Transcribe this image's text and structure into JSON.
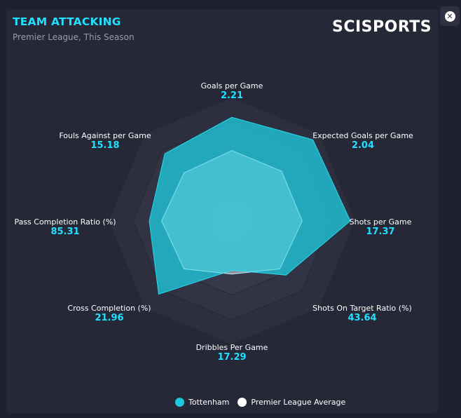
{
  "header": {
    "title": "TEAM ATTACKING",
    "subtitle": "Premier League, This Season",
    "brand": "SCISPORTS"
  },
  "chart_data": {
    "type": "radar",
    "axes": [
      {
        "label": "Goals per Game",
        "value": "2.21"
      },
      {
        "label": "Expected Goals per Game",
        "value": "2.04"
      },
      {
        "label": "Shots per Game",
        "value": "17.37"
      },
      {
        "label": "Shots On Target Ratio (%)",
        "value": "43.64"
      },
      {
        "label": "Dribbles Per Game",
        "value": "17.29"
      },
      {
        "label": "Cross Completion (%)",
        "value": "21.96"
      },
      {
        "label": "Pass Completion Ratio (%)",
        "value": "85.31"
      },
      {
        "label": "Fouls Against per Game",
        "value": "15.18"
      }
    ],
    "series": [
      {
        "name": "Tottenham",
        "color": "#1fc8db",
        "normalized": [
          0.84,
          0.93,
          0.96,
          0.62,
          0.4,
          0.84,
          0.67,
          0.77
        ]
      },
      {
        "name": "Premier League Average",
        "color": "#ffffff",
        "normalized": [
          0.57,
          0.57,
          0.57,
          0.55,
          0.43,
          0.55,
          0.57,
          0.55
        ]
      }
    ],
    "rings": 5
  },
  "legend": {
    "team": "Tottenham",
    "average": "Premier League Average",
    "team_color": "#1fc8db",
    "average_color": "#ffffff"
  }
}
